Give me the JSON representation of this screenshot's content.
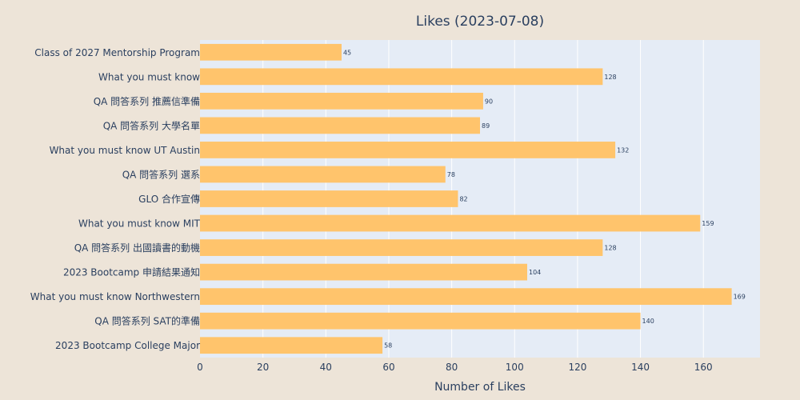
{
  "chart_data": {
    "type": "bar",
    "orientation": "horizontal",
    "title": "Likes (2023-07-08)",
    "xlabel": "Number of Likes",
    "ylabel": "",
    "xlim": [
      0,
      178
    ],
    "xticks": [
      0,
      20,
      40,
      60,
      80,
      100,
      120,
      140,
      160
    ],
    "grid": true,
    "categories": [
      "Class of 2027 Mentorship Program",
      "What you must know",
      "QA 問答系列 推薦信準備",
      "QA 問答系列 大學名單",
      "What you must know UT Austin",
      "QA 問答系列 選系",
      "GLO 合作宣傳",
      "What you must know MIT",
      "QA 問答系列 出國讀書的動機",
      "2023 Bootcamp 申請結果通知",
      "What you must know Northwestern",
      "QA 問答系列 SAT的準備",
      "2023 Bootcamp College Major"
    ],
    "values": [
      45,
      128,
      90,
      89,
      132,
      78,
      82,
      159,
      128,
      104,
      169,
      140,
      58
    ],
    "colors": {
      "bar": "#ffc46c",
      "plot_bg": "#e5ecf6",
      "paper_bg": "#ede4d8",
      "grid": "#ffffff",
      "text": "#2a3f5f"
    }
  }
}
